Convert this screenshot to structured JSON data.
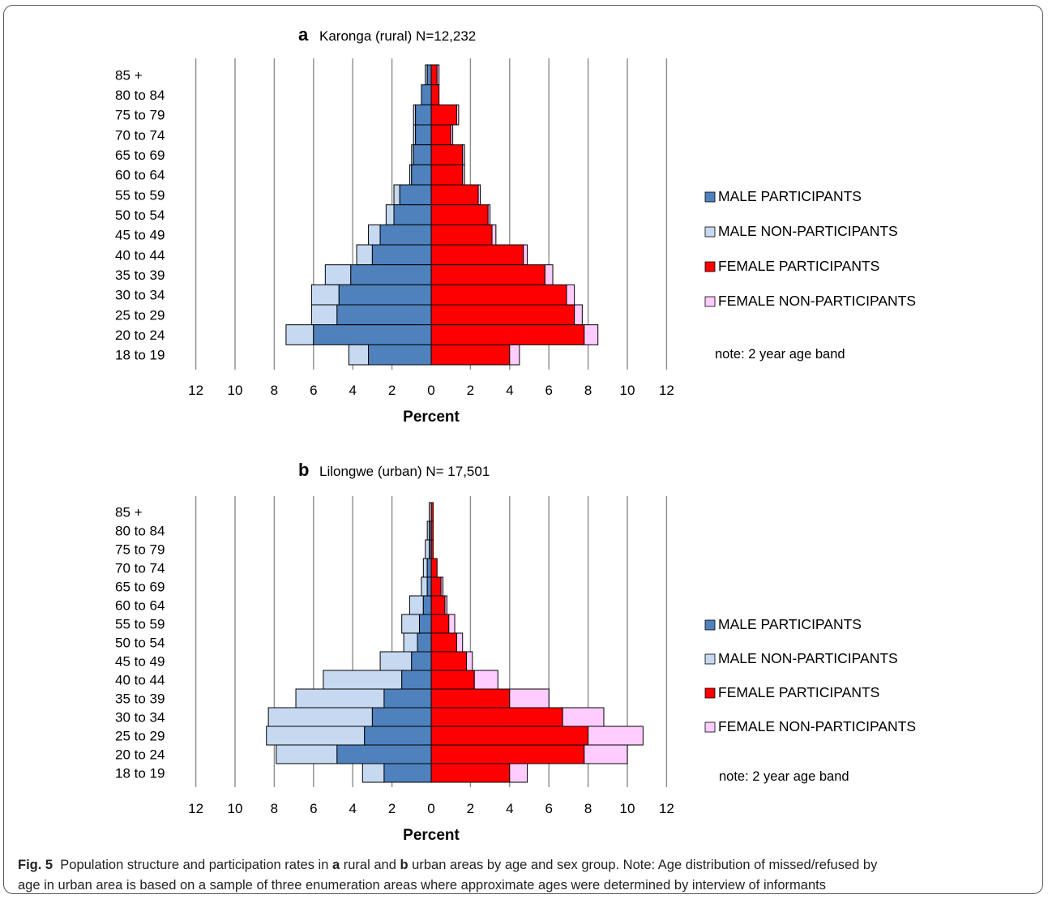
{
  "caption": {
    "fig_label": "Fig. 5",
    "line1_a": "Population structure and participation rates in",
    "panel_a": "a",
    "line1_b": "rural and",
    "panel_b": "b",
    "line1_c": "urban areas by age and sex group. Note: Age distribution of missed/refused by",
    "line2": "age in urban area is based on a sample of three enumeration areas where approximate ages were determined by interview of informants"
  },
  "chart_data": [
    {
      "type": "bar",
      "panel": "a",
      "title": "Karonga (rural) N=12,232",
      "xlabel": "Percent",
      "ylabel": "",
      "xlim": [
        -12,
        12
      ],
      "x_ticks": [
        "12",
        "10",
        "8",
        "6",
        "4",
        "2",
        "0",
        "2",
        "4",
        "6",
        "8",
        "10",
        "12"
      ],
      "grid": true,
      "legend_position": "right",
      "note": "note: 2 year age band",
      "categories": [
        "85 +",
        "80 to 84",
        "75 to 79",
        "70 to 74",
        "65 to 69",
        "60 to 64",
        "55 to 59",
        "50 to 54",
        "45 to 49",
        "40 to 44",
        "35 to 39",
        "30 to 34",
        "25 to 29",
        "20 to 24",
        "18 to 19"
      ],
      "series": [
        {
          "name": "MALE PARTICIPANTS",
          "color": "#4F81BD",
          "values": [
            0.2,
            0.5,
            0.8,
            0.8,
            0.9,
            1.0,
            1.6,
            1.9,
            2.6,
            3.0,
            4.1,
            4.7,
            4.8,
            6.0,
            3.2
          ]
        },
        {
          "name": "MALE NON-PARTICIPANTS",
          "color": "#C6D9F0",
          "values": [
            0.1,
            0.0,
            0.1,
            0.1,
            0.1,
            0.1,
            0.3,
            0.4,
            0.6,
            0.8,
            1.3,
            1.4,
            1.3,
            1.4,
            1.0
          ]
        },
        {
          "name": "FEMALE PARTICIPANTS",
          "color": "#FF0000",
          "values": [
            0.3,
            0.4,
            1.3,
            1.0,
            1.6,
            1.6,
            2.4,
            2.9,
            3.1,
            4.7,
            5.8,
            6.9,
            7.3,
            7.8,
            4.0
          ]
        },
        {
          "name": "FEMALE NON-PARTICIPANTS",
          "color": "#FFCCFF",
          "values": [
            0.1,
            0.0,
            0.1,
            0.1,
            0.1,
            0.1,
            0.1,
            0.1,
            0.2,
            0.2,
            0.4,
            0.4,
            0.4,
            0.7,
            0.5
          ]
        }
      ]
    },
    {
      "type": "bar",
      "panel": "b",
      "title": "Lilongwe (urban) N= 17,501",
      "xlabel": "Percent",
      "ylabel": "",
      "xlim": [
        -12,
        12
      ],
      "x_ticks": [
        "12",
        "10",
        "8",
        "6",
        "4",
        "2",
        "0",
        "2",
        "4",
        "6",
        "8",
        "10",
        "12"
      ],
      "grid": true,
      "legend_position": "right",
      "note": "note: 2 year age band",
      "categories": [
        "85 +",
        "80 to 84",
        "75 to 79",
        "70 to 74",
        "65 to 69",
        "60 to 64",
        "55 to 59",
        "50 to 54",
        "45 to 49",
        "40 to 44",
        "35 to 39",
        "30 to 34",
        "25 to 29",
        "20 to 24",
        "18 to 19"
      ],
      "series": [
        {
          "name": "MALE PARTICIPANTS",
          "color": "#4F81BD",
          "values": [
            0.0,
            0.1,
            0.1,
            0.2,
            0.2,
            0.4,
            0.6,
            0.7,
            1.0,
            1.5,
            2.4,
            3.0,
            3.4,
            4.8,
            2.4
          ]
        },
        {
          "name": "MALE NON-PARTICIPANTS",
          "color": "#C6D9F0",
          "values": [
            0.1,
            0.1,
            0.2,
            0.2,
            0.3,
            0.7,
            0.9,
            0.7,
            1.6,
            4.0,
            4.5,
            5.3,
            5.0,
            3.1,
            1.1
          ]
        },
        {
          "name": "FEMALE PARTICIPANTS",
          "color": "#FF0000",
          "values": [
            0.1,
            0.1,
            0.1,
            0.3,
            0.5,
            0.7,
            0.9,
            1.3,
            1.8,
            2.2,
            4.0,
            6.7,
            8.0,
            7.8,
            4.0
          ]
        },
        {
          "name": "FEMALE NON-PARTICIPANTS",
          "color": "#FFCCFF",
          "values": [
            0.0,
            0.0,
            0.0,
            0.0,
            0.1,
            0.1,
            0.3,
            0.3,
            0.3,
            1.2,
            2.0,
            2.1,
            2.8,
            2.2,
            0.9
          ]
        }
      ]
    }
  ]
}
